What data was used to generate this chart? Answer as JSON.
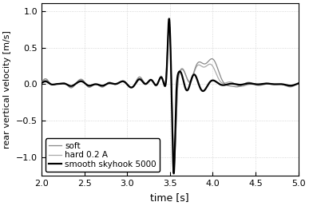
{
  "xlabel": "time [s]",
  "ylabel": "rear vertical velocity [m/s]",
  "xlim": [
    2,
    5
  ],
  "ylim": [
    -1.25,
    1.1
  ],
  "yticks": [
    -1.0,
    -0.5,
    0.0,
    0.5,
    1.0
  ],
  "xticks": [
    2.0,
    2.5,
    3.0,
    3.5,
    4.0,
    4.5,
    5.0
  ],
  "legend": [
    "soft",
    "hard 0.2 A",
    "smooth skyhook 5000"
  ],
  "colors": {
    "soft": "#888888",
    "hard": "#aaaaaa",
    "skyhook": "#000000"
  },
  "linewidths": {
    "soft": 0.9,
    "hard": 0.9,
    "skyhook": 1.6
  },
  "grid_color": "#cccccc",
  "grid_style": ":"
}
